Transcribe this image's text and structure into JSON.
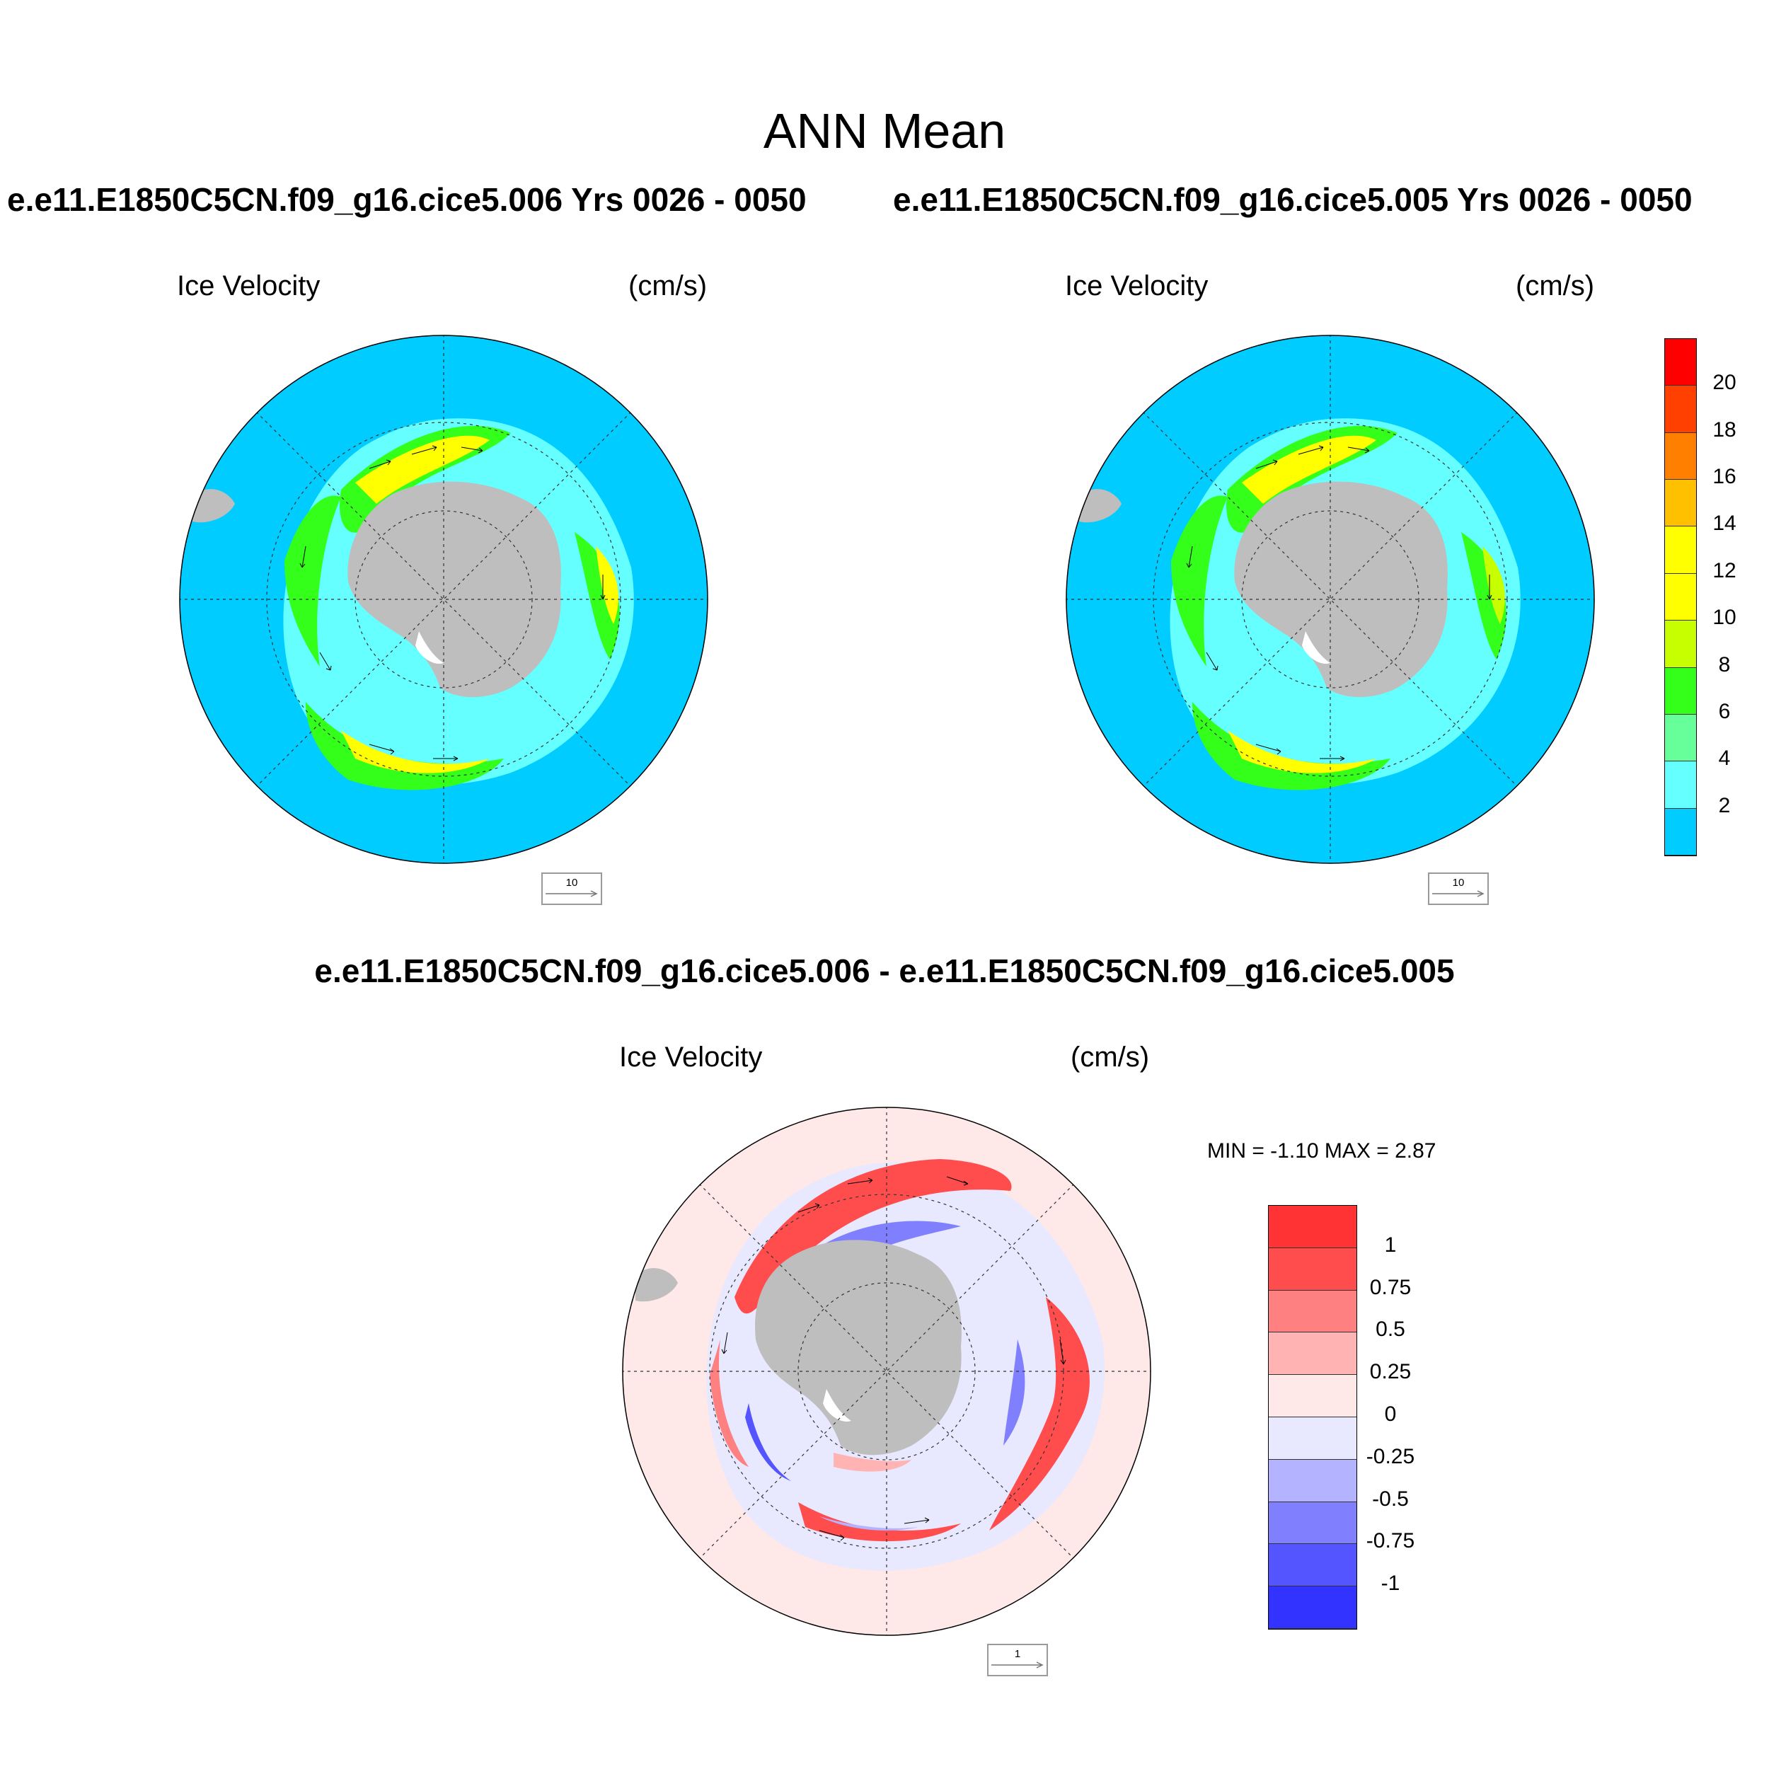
{
  "title": "ANN Mean",
  "panels": [
    {
      "id": "case1",
      "header": "e.e11.E1850C5CN.f09_g16.cice5.006  Yrs 0026 - 0050",
      "variable": "Ice Velocity",
      "units": "(cm/s)",
      "ref_vector": "10"
    },
    {
      "id": "case2",
      "header": "e.e11.E1850C5CN.f09_g16.cice5.005  Yrs 0026 - 0050",
      "variable": "Ice Velocity",
      "units": "(cm/s)",
      "ref_vector": "10"
    }
  ],
  "difference": {
    "header": "e.e11.E1850C5CN.f09_g16.cice5.006 - e.e11.E1850C5CN.f09_g16.cice5.005",
    "variable": "Ice Velocity",
    "units": "(cm/s)",
    "minmax": "MIN =  -1.10 MAX =   2.87",
    "ref_vector": "1"
  },
  "colorbar_speed": {
    "labels": [
      "20",
      "18",
      "16",
      "14",
      "12",
      "10",
      "8",
      "6",
      "4",
      "2"
    ],
    "colors": [
      "#ff0000",
      "#ff4000",
      "#ff8000",
      "#ffc000",
      "#ffff00",
      "#ffff00",
      "#c8ff00",
      "#33ff1a",
      "#66ff99",
      "#66ffff",
      "#00ccff"
    ]
  },
  "colorbar_diff": {
    "labels": [
      "1",
      "0.75",
      "0.5",
      "0.25",
      "0",
      "-0.25",
      "-0.5",
      "-0.75",
      "-1"
    ],
    "colors": [
      "#ff3333",
      "#ff4d4d",
      "#ff8080",
      "#ffb3b3",
      "#ffe8e8",
      "#e8e8ff",
      "#b3b3ff",
      "#8080ff",
      "#5555ff",
      "#3333ff"
    ]
  },
  "map_colors": {
    "ocean": "#00ccff",
    "land": "#bebebe",
    "diff_background": "#ffe8e8"
  }
}
